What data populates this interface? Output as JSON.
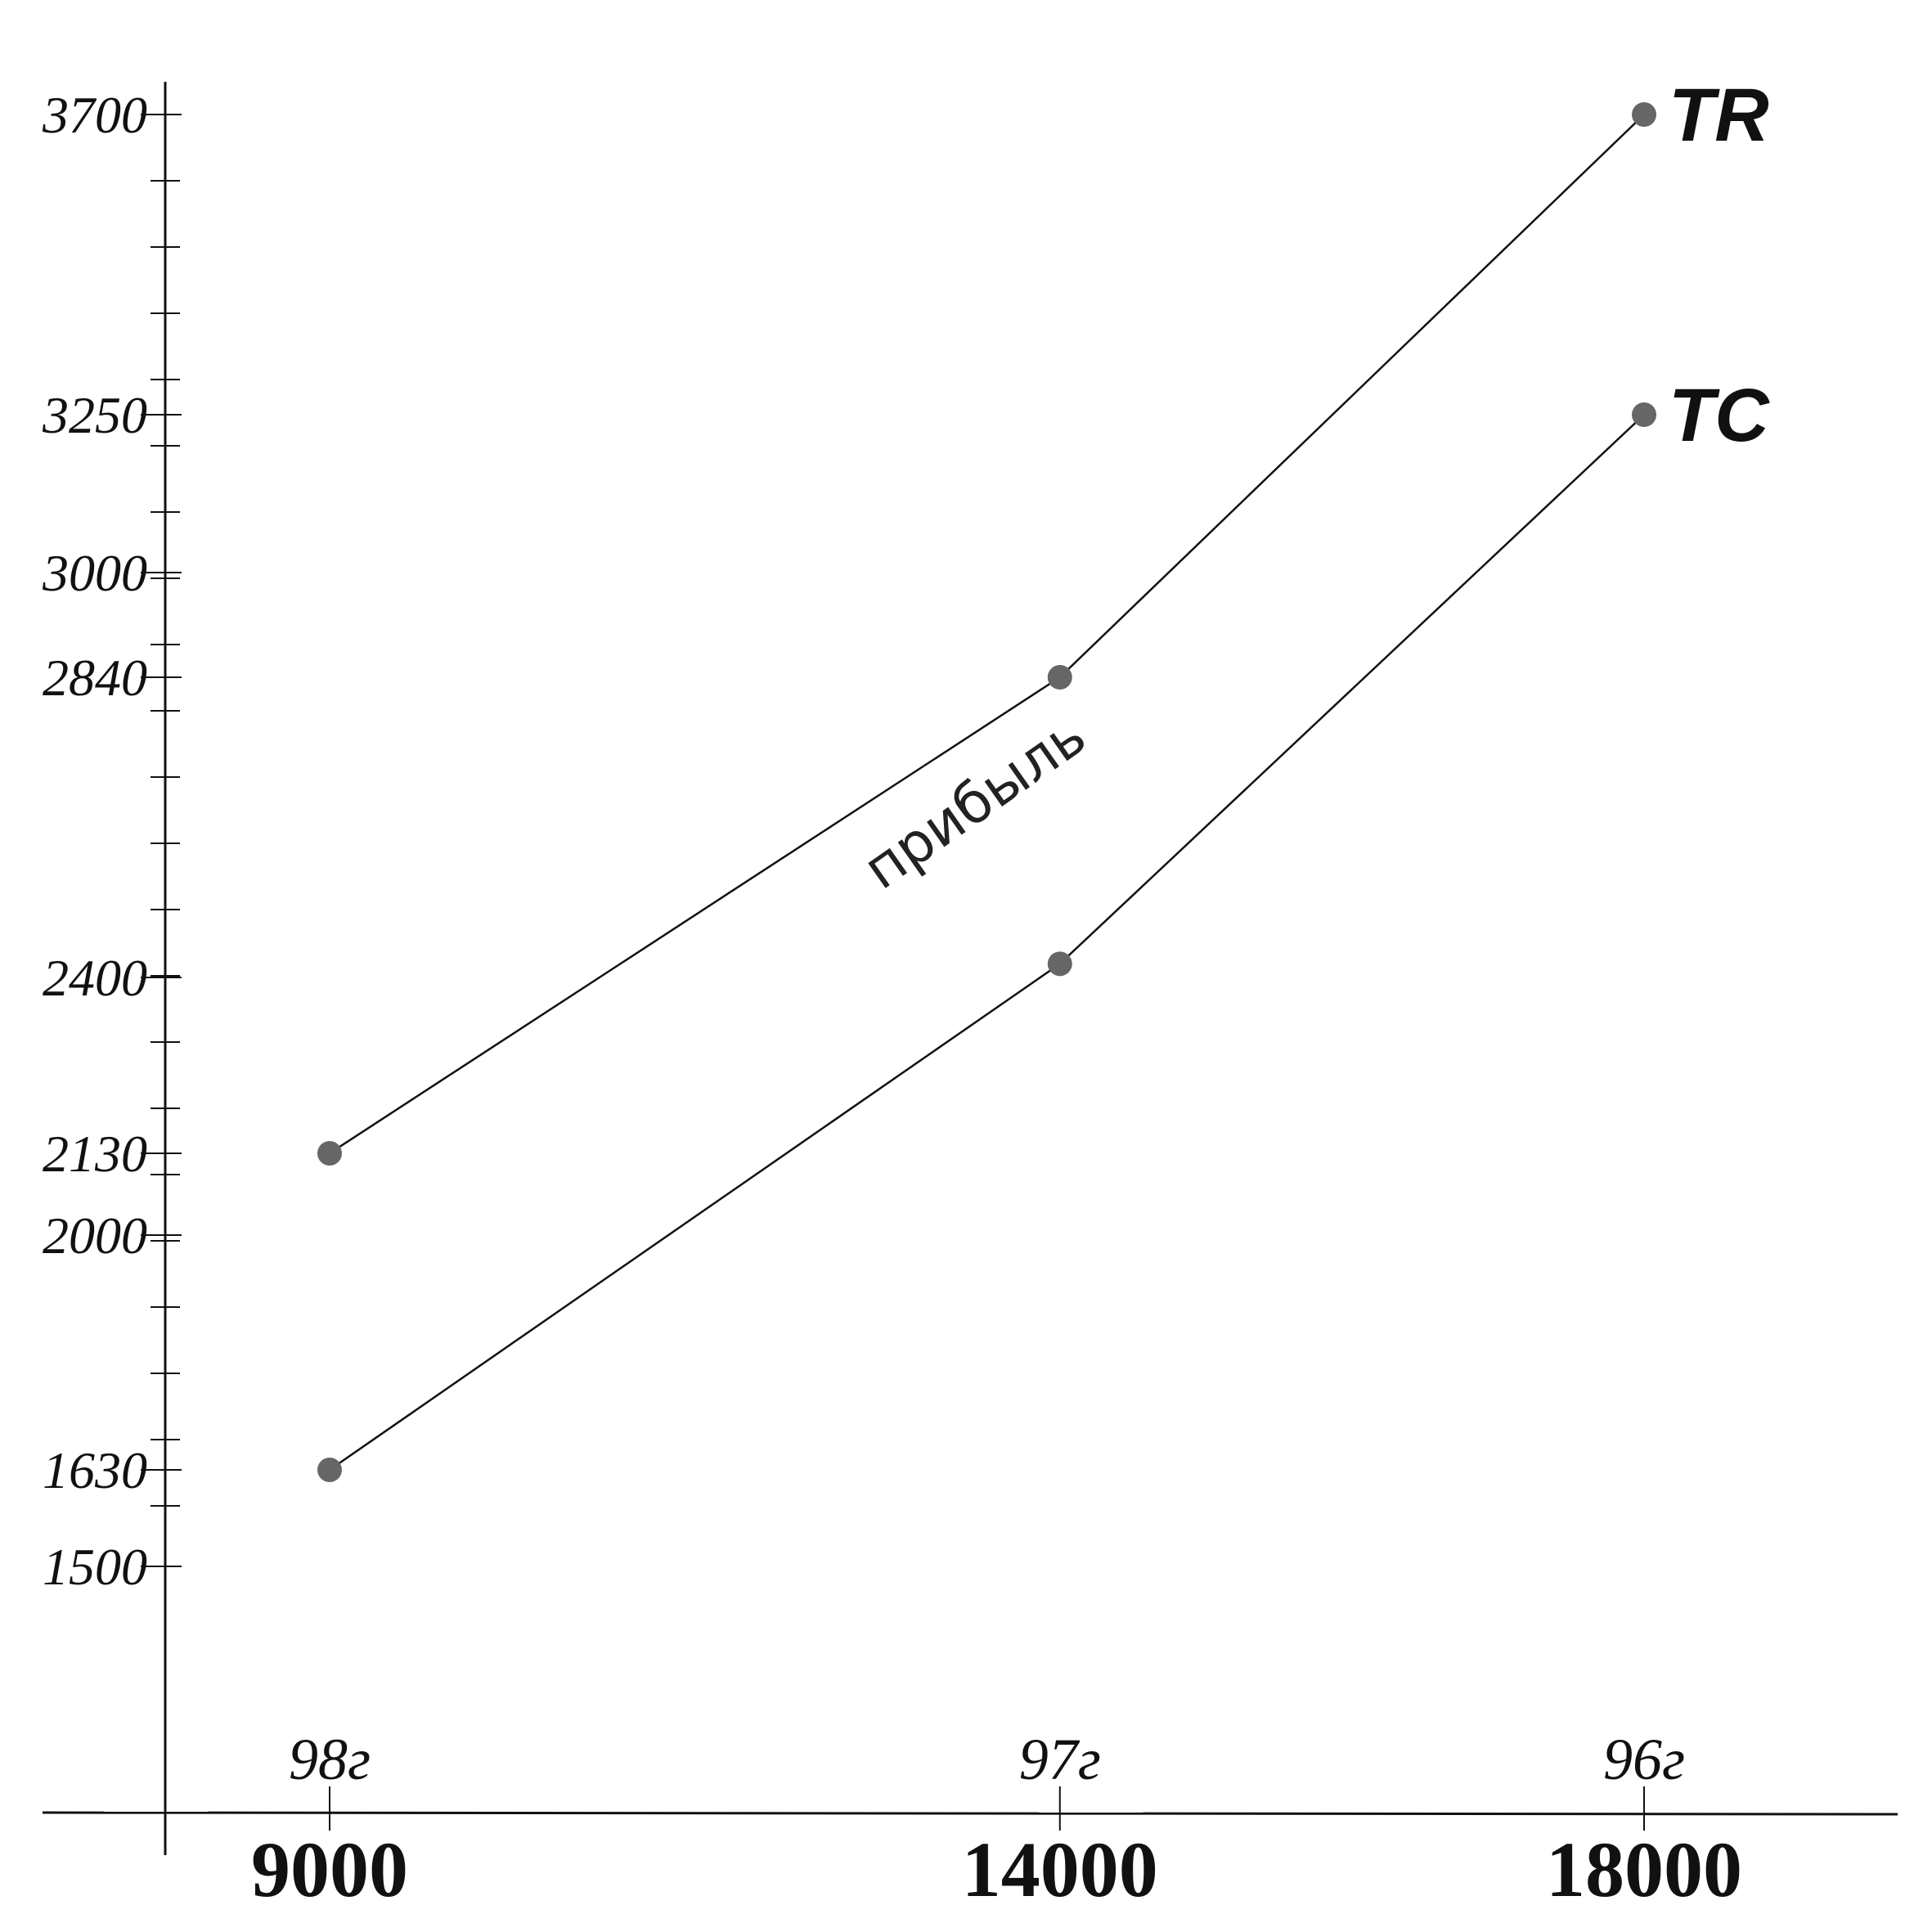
{
  "chart_data": {
    "type": "line",
    "x": [
      9000,
      14000,
      18000
    ],
    "xtick_labels": [
      "9000",
      "14000",
      "18000"
    ],
    "year_labels": [
      "98г",
      "97г",
      "96г"
    ],
    "yticks": [
      1500,
      1630,
      2000,
      2130,
      2400,
      2840,
      3000,
      3250,
      3700
    ],
    "ytick_labels": [
      "1500",
      "1630",
      "2000",
      "2130",
      "2400",
      "2840",
      "3000",
      "3250",
      "3700"
    ],
    "series": [
      {
        "name": "TR",
        "values": [
          2130,
          2840,
          3700
        ]
      },
      {
        "name": "TC",
        "values": [
          1630,
          2420,
          3250
        ]
      }
    ],
    "annotation": "прибыль",
    "title": "",
    "xlabel": "",
    "ylabel": "",
    "marker_color": "#666666",
    "line_color": "#111111"
  }
}
